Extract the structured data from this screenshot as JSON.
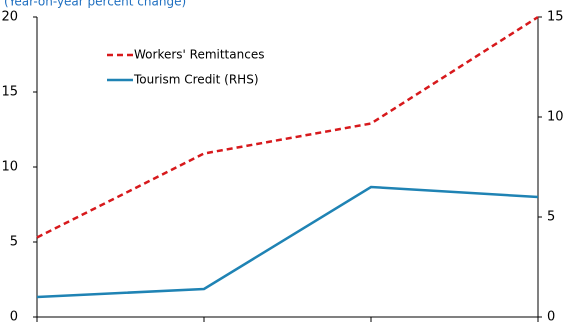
{
  "chart_data": {
    "type": "line",
    "subtitle": "(Year-on-year percent change)",
    "categories": [
      null,
      null,
      null,
      null
    ],
    "series": [
      {
        "name": "Workers' Remittances",
        "color": "#d7191c",
        "dash": true,
        "values": [
          5.3,
          10.9,
          12.9,
          20.0
        ]
      },
      {
        "name": "Tourism Credit (RHS)",
        "color": "#1f83b4",
        "axis": "y2",
        "values": [
          1.0,
          1.4,
          6.5,
          6.0
        ]
      }
    ],
    "ylim": [
      0,
      20
    ],
    "yticks": [
      0,
      5,
      10,
      15,
      20
    ],
    "y2lim": [
      0,
      15
    ],
    "y2ticks": [
      0,
      5,
      10,
      15
    ]
  }
}
